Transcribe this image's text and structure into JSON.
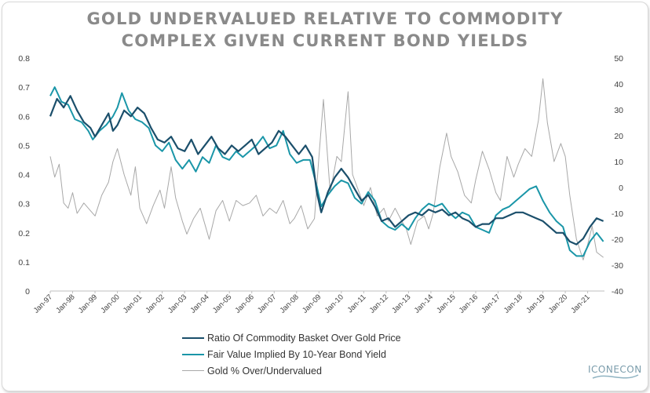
{
  "title_line1": "GOLD UNDERVALUED RELATIVE TO COMMODITY",
  "title_line2": "COMPLEX GIVEN CURRENT BOND YIELDS",
  "logo_text": "ICONECON",
  "colors": {
    "ratio": "#1b4f6b",
    "fair": "#1a96a8",
    "gold": "#a8a8a8",
    "title": "#8a8a8a"
  },
  "chart_data": {
    "type": "line",
    "title": "GOLD UNDERVALUED RELATIVE TO COMMODITY COMPLEX GIVEN CURRENT BOND YIELDS",
    "left_axis": {
      "ylim": [
        0,
        0.8
      ],
      "ticks": [
        "0",
        "0.1",
        "0.2",
        "0.3",
        "0.4",
        "0.5",
        "0.6",
        "0.7",
        "0.8"
      ]
    },
    "right_axis": {
      "ylim": [
        -40,
        50
      ],
      "ticks": [
        "-40",
        "-30",
        "-20",
        "-10",
        "0",
        "10",
        "20",
        "30",
        "40",
        "50"
      ]
    },
    "x_range": [
      1997.0,
      2021.75
    ],
    "x_tick_labels": [
      "Jan-97",
      "Jan-98",
      "Jan-99",
      "Jan-00",
      "Jan-01",
      "Jan-02",
      "Jan-03",
      "Jan-04",
      "Jan-05",
      "Jan-06",
      "Jan-07",
      "Jan-08",
      "Jan-09",
      "Jan-10",
      "Jan-11",
      "Jan-12",
      "Jan-13",
      "Jan-14",
      "Jan-15",
      "Jan-16",
      "Jan-17",
      "Jan-18",
      "Jan-19",
      "Jan-20",
      "Jan-21"
    ],
    "x_ticks": [
      1997,
      1998,
      1999,
      2000,
      2001,
      2002,
      2003,
      2004,
      2005,
      2006,
      2007,
      2008,
      2009,
      2010,
      2011,
      2012,
      2013,
      2014,
      2015,
      2016,
      2017,
      2018,
      2019,
      2020,
      2021
    ],
    "series": [
      {
        "name": "Ratio Of Commodity Basket Over Gold Price",
        "axis": "left",
        "points": [
          [
            1997.0,
            0.6
          ],
          [
            1997.3,
            0.66
          ],
          [
            1997.6,
            0.63
          ],
          [
            1997.9,
            0.67
          ],
          [
            1998.2,
            0.62
          ],
          [
            1998.5,
            0.58
          ],
          [
            1998.8,
            0.56
          ],
          [
            1999.0,
            0.53
          ],
          [
            1999.3,
            0.57
          ],
          [
            1999.6,
            0.61
          ],
          [
            1999.8,
            0.55
          ],
          [
            2000.0,
            0.57
          ],
          [
            2000.3,
            0.62
          ],
          [
            2000.6,
            0.6
          ],
          [
            2000.9,
            0.63
          ],
          [
            2001.2,
            0.61
          ],
          [
            2001.5,
            0.56
          ],
          [
            2001.8,
            0.52
          ],
          [
            2002.1,
            0.51
          ],
          [
            2002.4,
            0.53
          ],
          [
            2002.7,
            0.49
          ],
          [
            2003.0,
            0.48
          ],
          [
            2003.3,
            0.52
          ],
          [
            2003.6,
            0.47
          ],
          [
            2003.9,
            0.5
          ],
          [
            2004.2,
            0.53
          ],
          [
            2004.5,
            0.49
          ],
          [
            2004.8,
            0.47
          ],
          [
            2005.1,
            0.5
          ],
          [
            2005.4,
            0.48
          ],
          [
            2005.7,
            0.5
          ],
          [
            2006.0,
            0.52
          ],
          [
            2006.3,
            0.47
          ],
          [
            2006.6,
            0.49
          ],
          [
            2006.9,
            0.51
          ],
          [
            2007.2,
            0.55
          ],
          [
            2007.5,
            0.53
          ],
          [
            2007.8,
            0.5
          ],
          [
            2008.1,
            0.47
          ],
          [
            2008.4,
            0.5
          ],
          [
            2008.7,
            0.46
          ],
          [
            2008.9,
            0.34
          ],
          [
            2009.1,
            0.27
          ],
          [
            2009.4,
            0.34
          ],
          [
            2009.7,
            0.39
          ],
          [
            2010.0,
            0.42
          ],
          [
            2010.3,
            0.39
          ],
          [
            2010.6,
            0.35
          ],
          [
            2010.9,
            0.31
          ],
          [
            2011.2,
            0.33
          ],
          [
            2011.5,
            0.29
          ],
          [
            2011.8,
            0.24
          ],
          [
            2012.1,
            0.25
          ],
          [
            2012.4,
            0.22
          ],
          [
            2012.7,
            0.24
          ],
          [
            2013.0,
            0.26
          ],
          [
            2013.3,
            0.27
          ],
          [
            2013.6,
            0.26
          ],
          [
            2013.9,
            0.28
          ],
          [
            2014.2,
            0.27
          ],
          [
            2014.5,
            0.28
          ],
          [
            2014.8,
            0.26
          ],
          [
            2015.1,
            0.27
          ],
          [
            2015.4,
            0.25
          ],
          [
            2015.7,
            0.24
          ],
          [
            2016.0,
            0.22
          ],
          [
            2016.3,
            0.23
          ],
          [
            2016.6,
            0.23
          ],
          [
            2016.9,
            0.25
          ],
          [
            2017.2,
            0.25
          ],
          [
            2017.5,
            0.26
          ],
          [
            2017.8,
            0.27
          ],
          [
            2018.1,
            0.27
          ],
          [
            2018.4,
            0.26
          ],
          [
            2018.7,
            0.25
          ],
          [
            2019.0,
            0.24
          ],
          [
            2019.3,
            0.22
          ],
          [
            2019.6,
            0.2
          ],
          [
            2019.9,
            0.2
          ],
          [
            2020.2,
            0.17
          ],
          [
            2020.5,
            0.16
          ],
          [
            2020.8,
            0.18
          ],
          [
            2021.1,
            0.22
          ],
          [
            2021.4,
            0.25
          ],
          [
            2021.7,
            0.24
          ]
        ]
      },
      {
        "name": "Fair Value Implied By 10-Year Bond Yield",
        "axis": "left",
        "points": [
          [
            1997.0,
            0.67
          ],
          [
            1997.2,
            0.7
          ],
          [
            1997.5,
            0.65
          ],
          [
            1997.8,
            0.64
          ],
          [
            1998.1,
            0.59
          ],
          [
            1998.4,
            0.58
          ],
          [
            1998.7,
            0.55
          ],
          [
            1998.9,
            0.52
          ],
          [
            1999.2,
            0.55
          ],
          [
            1999.5,
            0.57
          ],
          [
            1999.8,
            0.6
          ],
          [
            2000.0,
            0.63
          ],
          [
            2000.2,
            0.68
          ],
          [
            2000.5,
            0.62
          ],
          [
            2000.8,
            0.59
          ],
          [
            2001.1,
            0.58
          ],
          [
            2001.4,
            0.56
          ],
          [
            2001.7,
            0.5
          ],
          [
            2002.0,
            0.48
          ],
          [
            2002.3,
            0.51
          ],
          [
            2002.6,
            0.45
          ],
          [
            2002.9,
            0.42
          ],
          [
            2003.2,
            0.45
          ],
          [
            2003.5,
            0.41
          ],
          [
            2003.8,
            0.46
          ],
          [
            2004.1,
            0.44
          ],
          [
            2004.4,
            0.5
          ],
          [
            2004.7,
            0.46
          ],
          [
            2005.0,
            0.45
          ],
          [
            2005.3,
            0.48
          ],
          [
            2005.6,
            0.46
          ],
          [
            2005.9,
            0.48
          ],
          [
            2006.2,
            0.5
          ],
          [
            2006.5,
            0.53
          ],
          [
            2006.8,
            0.49
          ],
          [
            2007.1,
            0.5
          ],
          [
            2007.4,
            0.55
          ],
          [
            2007.7,
            0.47
          ],
          [
            2008.0,
            0.44
          ],
          [
            2008.3,
            0.45
          ],
          [
            2008.6,
            0.45
          ],
          [
            2008.9,
            0.36
          ],
          [
            2009.1,
            0.29
          ],
          [
            2009.4,
            0.33
          ],
          [
            2009.7,
            0.36
          ],
          [
            2010.0,
            0.38
          ],
          [
            2010.3,
            0.37
          ],
          [
            2010.6,
            0.32
          ],
          [
            2010.9,
            0.3
          ],
          [
            2011.2,
            0.34
          ],
          [
            2011.5,
            0.31
          ],
          [
            2011.8,
            0.24
          ],
          [
            2012.1,
            0.22
          ],
          [
            2012.4,
            0.21
          ],
          [
            2012.7,
            0.23
          ],
          [
            2013.0,
            0.21
          ],
          [
            2013.3,
            0.25
          ],
          [
            2013.6,
            0.28
          ],
          [
            2013.9,
            0.3
          ],
          [
            2014.2,
            0.29
          ],
          [
            2014.5,
            0.3
          ],
          [
            2014.8,
            0.27
          ],
          [
            2015.1,
            0.25
          ],
          [
            2015.4,
            0.27
          ],
          [
            2015.7,
            0.26
          ],
          [
            2016.0,
            0.22
          ],
          [
            2016.3,
            0.21
          ],
          [
            2016.6,
            0.2
          ],
          [
            2016.9,
            0.26
          ],
          [
            2017.2,
            0.28
          ],
          [
            2017.5,
            0.29
          ],
          [
            2017.8,
            0.31
          ],
          [
            2018.1,
            0.33
          ],
          [
            2018.4,
            0.35
          ],
          [
            2018.7,
            0.36
          ],
          [
            2019.0,
            0.31
          ],
          [
            2019.3,
            0.27
          ],
          [
            2019.6,
            0.24
          ],
          [
            2019.9,
            0.22
          ],
          [
            2020.2,
            0.14
          ],
          [
            2020.5,
            0.12
          ],
          [
            2020.8,
            0.12
          ],
          [
            2021.1,
            0.17
          ],
          [
            2021.4,
            0.2
          ],
          [
            2021.7,
            0.17
          ]
        ]
      },
      {
        "name": "Gold % Over/Undervalued",
        "axis": "right",
        "points": [
          [
            1997.0,
            12
          ],
          [
            1997.2,
            4
          ],
          [
            1997.4,
            9
          ],
          [
            1997.6,
            -6
          ],
          [
            1997.8,
            -8
          ],
          [
            1998.0,
            -2
          ],
          [
            1998.2,
            -10
          ],
          [
            1998.5,
            -6
          ],
          [
            1998.8,
            -9
          ],
          [
            1999.0,
            -11
          ],
          [
            1999.3,
            -3
          ],
          [
            1999.6,
            2
          ],
          [
            1999.8,
            10
          ],
          [
            2000.0,
            15
          ],
          [
            2000.3,
            5
          ],
          [
            2000.6,
            -3
          ],
          [
            2000.8,
            8
          ],
          [
            2001.0,
            -8
          ],
          [
            2001.3,
            -14
          ],
          [
            2001.6,
            -7
          ],
          [
            2001.9,
            -1
          ],
          [
            2002.1,
            -8
          ],
          [
            2002.4,
            8
          ],
          [
            2002.6,
            -4
          ],
          [
            2002.9,
            -13
          ],
          [
            2003.1,
            -18
          ],
          [
            2003.4,
            -12
          ],
          [
            2003.7,
            -8
          ],
          [
            2003.9,
            -14
          ],
          [
            2004.1,
            -20
          ],
          [
            2004.4,
            -9
          ],
          [
            2004.7,
            -5
          ],
          [
            2005.0,
            -13
          ],
          [
            2005.3,
            -5
          ],
          [
            2005.6,
            -7
          ],
          [
            2005.9,
            -6
          ],
          [
            2006.2,
            -3
          ],
          [
            2006.5,
            -11
          ],
          [
            2006.8,
            -8
          ],
          [
            2007.1,
            -10
          ],
          [
            2007.4,
            -5
          ],
          [
            2007.7,
            -14
          ],
          [
            2007.9,
            -12
          ],
          [
            2008.2,
            -7
          ],
          [
            2008.5,
            -16
          ],
          [
            2008.8,
            -12
          ],
          [
            2009.0,
            12
          ],
          [
            2009.2,
            34
          ],
          [
            2009.5,
            -2
          ],
          [
            2009.8,
            12
          ],
          [
            2010.0,
            10
          ],
          [
            2010.3,
            37
          ],
          [
            2010.5,
            5
          ],
          [
            2010.8,
            -2
          ],
          [
            2011.0,
            -7
          ],
          [
            2011.3,
            0
          ],
          [
            2011.6,
            -11
          ],
          [
            2011.9,
            -8
          ],
          [
            2012.1,
            -13
          ],
          [
            2012.4,
            -8
          ],
          [
            2012.7,
            -13
          ],
          [
            2012.9,
            -16
          ],
          [
            2013.1,
            -22
          ],
          [
            2013.4,
            -13
          ],
          [
            2013.7,
            -11
          ],
          [
            2013.9,
            -16
          ],
          [
            2014.1,
            -10
          ],
          [
            2014.4,
            8
          ],
          [
            2014.7,
            21
          ],
          [
            2014.9,
            12
          ],
          [
            2015.2,
            6
          ],
          [
            2015.5,
            -3
          ],
          [
            2015.8,
            -6
          ],
          [
            2016.0,
            3
          ],
          [
            2016.3,
            14
          ],
          [
            2016.6,
            7
          ],
          [
            2016.9,
            -2
          ],
          [
            2017.1,
            -5
          ],
          [
            2017.4,
            12
          ],
          [
            2017.7,
            4
          ],
          [
            2017.9,
            9
          ],
          [
            2018.2,
            15
          ],
          [
            2018.5,
            12
          ],
          [
            2018.8,
            26
          ],
          [
            2019.0,
            42
          ],
          [
            2019.2,
            25
          ],
          [
            2019.5,
            10
          ],
          [
            2019.8,
            17
          ],
          [
            2020.0,
            12
          ],
          [
            2020.2,
            -3
          ],
          [
            2020.5,
            -20
          ],
          [
            2020.8,
            -28
          ],
          [
            2021.0,
            -22
          ],
          [
            2021.2,
            -15
          ],
          [
            2021.4,
            -25
          ],
          [
            2021.7,
            -27
          ]
        ]
      }
    ]
  },
  "legend": [
    {
      "label": "Ratio Of Commodity Basket Over Gold Price"
    },
    {
      "label": "Fair Value Implied By 10-Year Bond Yield"
    },
    {
      "label": "Gold % Over/Undervalued"
    }
  ]
}
